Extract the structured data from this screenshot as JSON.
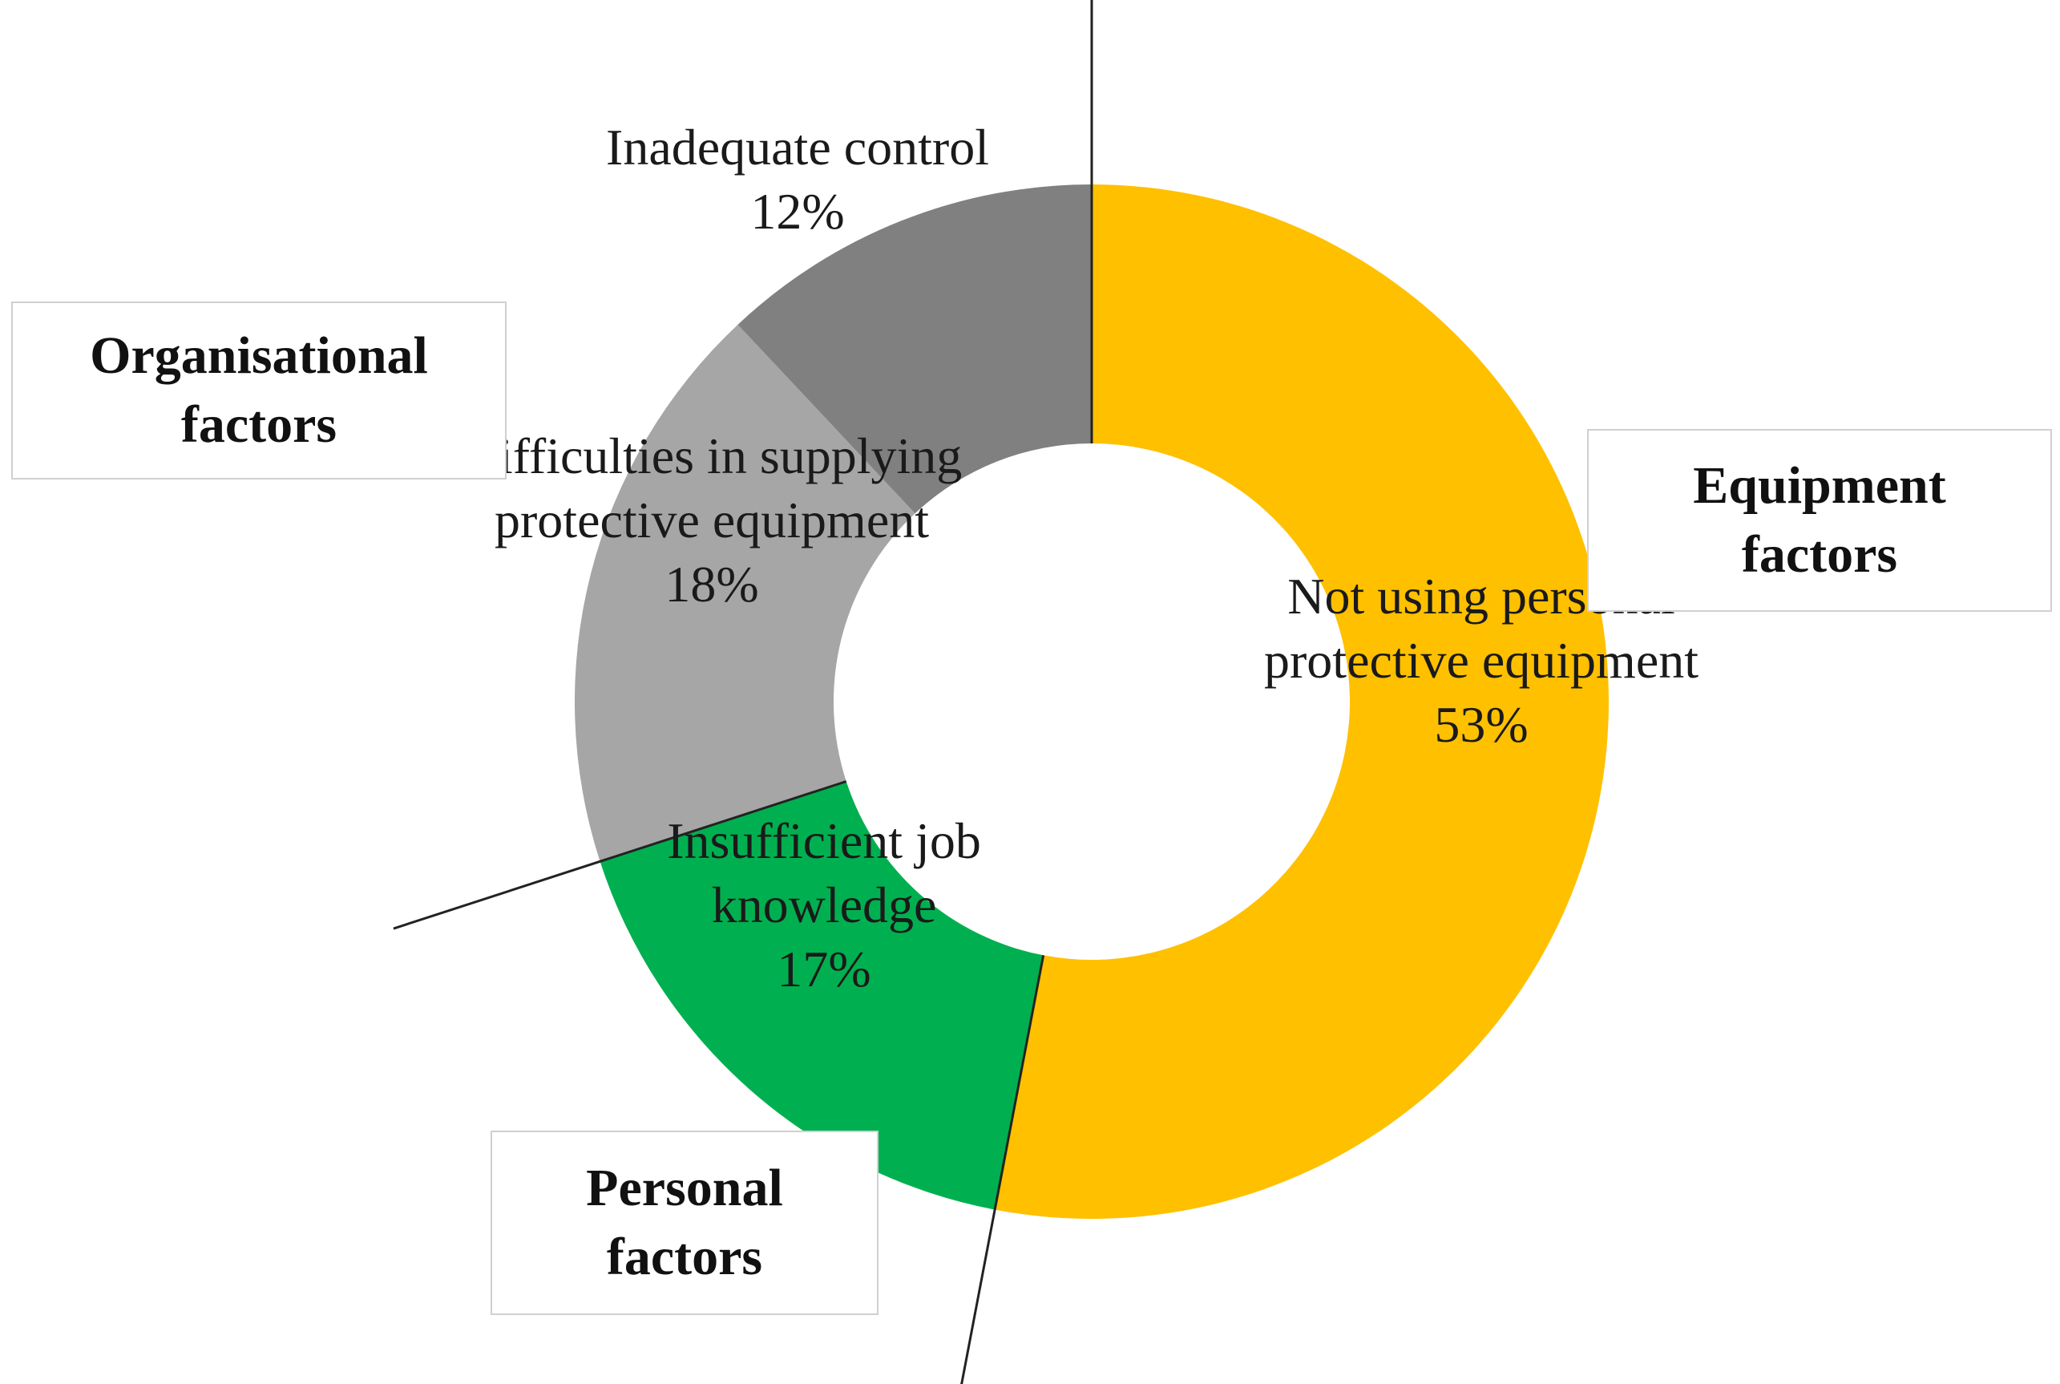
{
  "chart_data": {
    "type": "pie",
    "donut": true,
    "slices": [
      {
        "label": [
          "Not using personal",
          "protective equipment"
        ],
        "value": 53,
        "value_label": "53%",
        "color": "#FFC000"
      },
      {
        "label": [
          "Insufficient job",
          "knowledge"
        ],
        "value": 17,
        "value_label": "17%",
        "color": "#00B050"
      },
      {
        "label": [
          "Difficulties in supplying",
          "protective equipment"
        ],
        "value": 18,
        "value_label": "18%",
        "color": "#A6A6A6"
      },
      {
        "label": [
          "Inadequate control"
        ],
        "value": 12,
        "value_label": "12%",
        "color": "#808080"
      }
    ],
    "groups": [
      {
        "name": [
          "Equipment",
          "factors"
        ],
        "slices": [
          0
        ]
      },
      {
        "name": [
          "Personal",
          "factors"
        ],
        "slices": [
          1
        ]
      },
      {
        "name": [
          "Organisational",
          "factors"
        ],
        "slices": [
          2,
          3
        ]
      }
    ],
    "start_angle": "12 o'clock",
    "direction": "clockwise",
    "legend": "none"
  }
}
